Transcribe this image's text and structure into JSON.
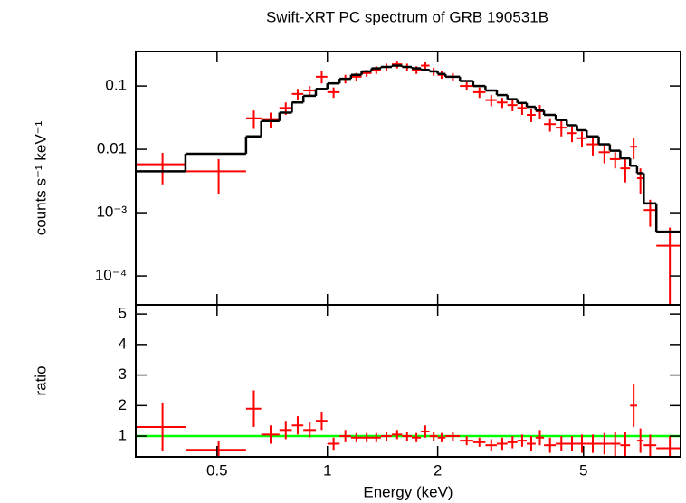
{
  "chart_data": [
    {
      "type": "errorbar",
      "title": "Swift-XRT PC spectrum of GRB 190531B",
      "ylabel": "counts s⁻¹ keV⁻¹",
      "xscale": "log",
      "yscale": "log",
      "xlim": [
        0.3,
        9.2
      ],
      "ylim": [
        3.5e-05,
        0.35
      ],
      "xticks": [
        0.5,
        1,
        2,
        5
      ],
      "yticks": [
        0.1,
        0.01,
        {
          "value": 0.001,
          "label": "10⁻³"
        },
        {
          "value": 0.0001,
          "label": "10⁻⁴"
        }
      ],
      "x": [
        0.355,
        0.505,
        0.63,
        0.7,
        0.77,
        0.83,
        0.895,
        0.965,
        1.04,
        1.12,
        1.2,
        1.28,
        1.36,
        1.45,
        1.55,
        1.65,
        1.75,
        1.85,
        1.95,
        2.05,
        2.2,
        2.4,
        2.6,
        2.8,
        3.0,
        3.2,
        3.4,
        3.6,
        3.8,
        4.05,
        4.35,
        4.65,
        4.95,
        5.3,
        5.7,
        6.1,
        6.5,
        6.85,
        7.15,
        7.6,
        8.6
      ],
      "xerr": [
        0.055,
        0.095,
        0.03,
        0.04,
        0.03,
        0.03,
        0.035,
        0.035,
        0.04,
        0.04,
        0.04,
        0.04,
        0.04,
        0.05,
        0.05,
        0.05,
        0.05,
        0.05,
        0.05,
        0.05,
        0.1,
        0.1,
        0.1,
        0.1,
        0.1,
        0.1,
        0.1,
        0.1,
        0.1,
        0.15,
        0.15,
        0.15,
        0.15,
        0.2,
        0.2,
        0.2,
        0.2,
        0.15,
        0.15,
        0.3,
        0.7
      ],
      "series": [
        {
          "color": "#ff0000",
          "values": [
            0.0058,
            0.0045,
            0.031,
            0.03,
            0.045,
            0.075,
            0.085,
            0.14,
            0.08,
            0.13,
            0.14,
            0.16,
            0.18,
            0.2,
            0.22,
            0.2,
            0.18,
            0.21,
            0.17,
            0.15,
            0.14,
            0.1,
            0.08,
            0.06,
            0.055,
            0.05,
            0.045,
            0.035,
            0.04,
            0.025,
            0.022,
            0.018,
            0.015,
            0.012,
            0.009,
            0.007,
            0.005,
            0.011,
            0.0035,
            0.0011,
            0.0003
          ],
          "yerr": [
            0.003,
            0.0025,
            0.01,
            0.008,
            0.01,
            0.015,
            0.015,
            0.03,
            0.015,
            0.02,
            0.02,
            0.02,
            0.025,
            0.025,
            0.03,
            0.025,
            0.025,
            0.03,
            0.025,
            0.02,
            0.02,
            0.015,
            0.015,
            0.012,
            0.01,
            0.01,
            0.01,
            0.008,
            0.01,
            0.006,
            0.006,
            0.005,
            0.004,
            0.004,
            0.003,
            0.002,
            0.002,
            0.004,
            0.0015,
            0.0005,
            0.00028
          ]
        }
      ],
      "model": {
        "color": "#000000",
        "values": [
          0.0045,
          0.0085,
          0.016,
          0.028,
          0.038,
          0.055,
          0.07,
          0.09,
          0.11,
          0.13,
          0.15,
          0.17,
          0.19,
          0.2,
          0.21,
          0.2,
          0.19,
          0.18,
          0.17,
          0.155,
          0.14,
          0.12,
          0.1,
          0.085,
          0.072,
          0.062,
          0.054,
          0.047,
          0.041,
          0.035,
          0.029,
          0.024,
          0.02,
          0.016,
          0.012,
          0.0095,
          0.0072,
          0.0055,
          0.0042,
          0.0014,
          0.0005
        ]
      }
    },
    {
      "type": "errorbar",
      "xlabel": "Energy (keV)",
      "ylabel": "ratio",
      "xscale": "log",
      "yscale": "linear",
      "xlim": [
        0.3,
        9.2
      ],
      "ylim": [
        0.32,
        5.3
      ],
      "xticks": [
        0.5,
        1,
        2,
        5
      ],
      "yticks": [
        1,
        2,
        3,
        4,
        5
      ],
      "x": [
        0.355,
        0.505,
        0.63,
        0.7,
        0.77,
        0.83,
        0.895,
        0.965,
        1.04,
        1.12,
        1.2,
        1.28,
        1.36,
        1.45,
        1.55,
        1.65,
        1.75,
        1.85,
        1.95,
        2.05,
        2.2,
        2.4,
        2.6,
        2.8,
        3.0,
        3.2,
        3.4,
        3.6,
        3.8,
        4.05,
        4.35,
        4.65,
        4.95,
        5.3,
        5.7,
        6.1,
        6.5,
        6.85,
        7.15,
        7.6,
        8.6
      ],
      "xerr": [
        0.055,
        0.095,
        0.03,
        0.04,
        0.03,
        0.03,
        0.035,
        0.035,
        0.04,
        0.04,
        0.04,
        0.04,
        0.04,
        0.05,
        0.05,
        0.05,
        0.05,
        0.05,
        0.05,
        0.05,
        0.1,
        0.1,
        0.1,
        0.1,
        0.1,
        0.1,
        0.1,
        0.1,
        0.1,
        0.15,
        0.15,
        0.15,
        0.15,
        0.2,
        0.2,
        0.2,
        0.2,
        0.15,
        0.15,
        0.3,
        0.7
      ],
      "series": [
        {
          "color": "#ff0000",
          "values": [
            1.3,
            0.55,
            1.9,
            1.05,
            1.2,
            1.35,
            1.2,
            1.5,
            0.75,
            1.0,
            0.95,
            0.95,
            0.95,
            1.0,
            1.05,
            1.0,
            0.95,
            1.15,
            1.0,
            0.95,
            1.0,
            0.85,
            0.8,
            0.7,
            0.75,
            0.8,
            0.85,
            0.75,
            0.95,
            0.7,
            0.75,
            0.75,
            0.75,
            0.75,
            0.75,
            0.75,
            0.7,
            2.0,
            0.85,
            0.7,
            0.6
          ],
          "yerr": [
            0.8,
            0.3,
            0.6,
            0.3,
            0.3,
            0.3,
            0.25,
            0.3,
            0.2,
            0.2,
            0.15,
            0.15,
            0.15,
            0.15,
            0.15,
            0.15,
            0.15,
            0.2,
            0.15,
            0.15,
            0.15,
            0.15,
            0.15,
            0.2,
            0.2,
            0.2,
            0.2,
            0.25,
            0.25,
            0.25,
            0.25,
            0.25,
            0.3,
            0.3,
            0.35,
            0.4,
            0.45,
            0.7,
            0.4,
            0.35,
            0.4
          ]
        }
      ],
      "reference": {
        "color": "#00ff00",
        "value": 1
      }
    }
  ]
}
